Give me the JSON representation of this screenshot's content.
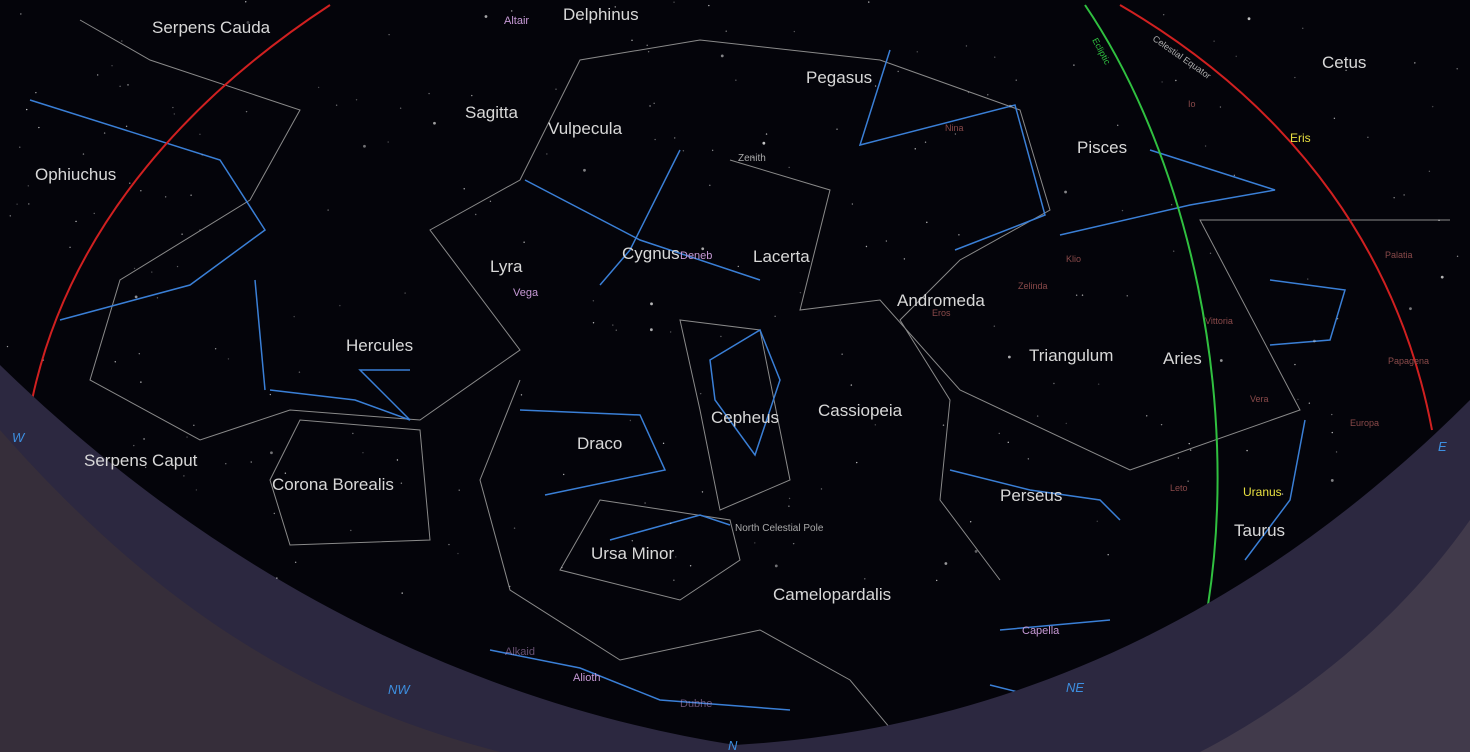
{
  "constellations": [
    "Serpens Cauda",
    "Delphinus",
    "Pegasus",
    "Sagitta",
    "Vulpecula",
    "Pisces",
    "Cetus",
    "Ophiuchus",
    "Cygnus",
    "Lacerta",
    "Lyra",
    "Andromeda",
    "Hercules",
    "Triangulum",
    "Aries",
    "Cepheus",
    "Cassiopeia",
    "Draco",
    "Serpens Caput",
    "Corona Borealis",
    "Perseus",
    "Taurus",
    "Ursa Minor",
    "Camelopardalis"
  ],
  "stars": [
    "Altair",
    "Vega",
    "Deneb",
    "Capella",
    "Alioth",
    "Alkaid",
    "Dubhe"
  ],
  "markers": [
    "Zenith",
    "North Celestial Pole"
  ],
  "planets": [
    "Eris",
    "Uranus"
  ],
  "minor_bodies": [
    "Nina",
    "Io",
    "Klio",
    "Eros",
    "Zelinda",
    "Vittoria",
    "Vera",
    "Europa",
    "Palatia",
    "Papagena",
    "Leto"
  ],
  "lines": [
    "Ecliptic",
    "Celestial Equator"
  ],
  "cardinals": [
    "W",
    "NW",
    "N",
    "NE",
    "E"
  ]
}
